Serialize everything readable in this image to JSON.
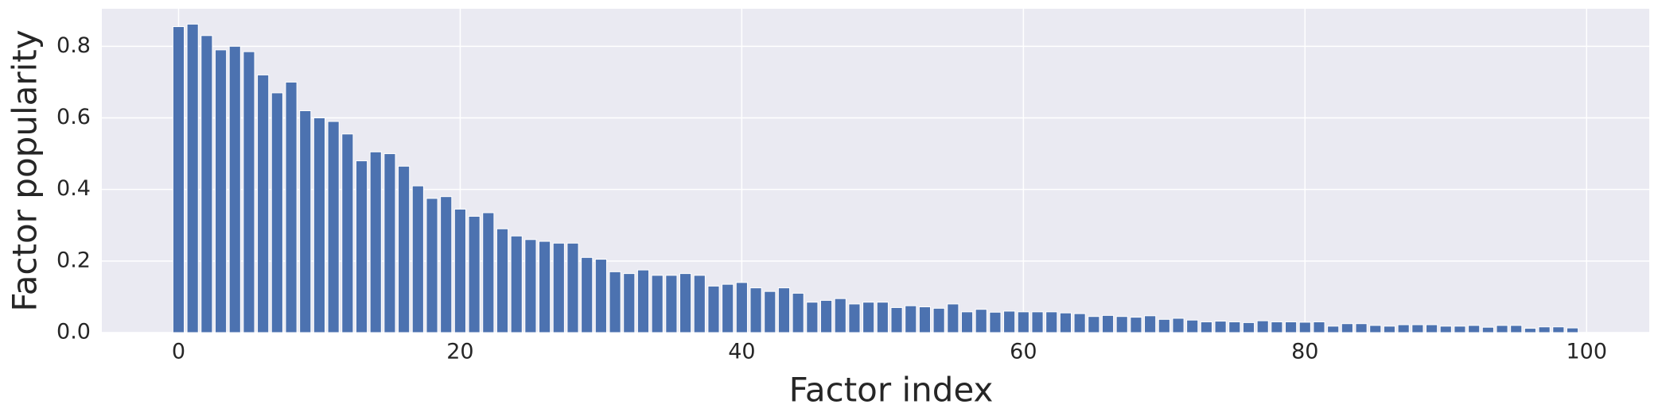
{
  "chart_data": {
    "type": "bar",
    "xlabel": "Factor index",
    "ylabel": "Factor popularity",
    "x": [
      0,
      1,
      2,
      3,
      4,
      5,
      6,
      7,
      8,
      9,
      10,
      11,
      12,
      13,
      14,
      15,
      16,
      17,
      18,
      19,
      20,
      21,
      22,
      23,
      24,
      25,
      26,
      27,
      28,
      29,
      30,
      31,
      32,
      33,
      34,
      35,
      36,
      37,
      38,
      39,
      40,
      41,
      42,
      43,
      44,
      45,
      46,
      47,
      48,
      49,
      50,
      51,
      52,
      53,
      54,
      55,
      56,
      57,
      58,
      59,
      60,
      61,
      62,
      63,
      64,
      65,
      66,
      67,
      68,
      69,
      70,
      71,
      72,
      73,
      74,
      75,
      76,
      77,
      78,
      79,
      80,
      81,
      82,
      83,
      84,
      85,
      86,
      87,
      88,
      89,
      90,
      91,
      92,
      93,
      94,
      95,
      96,
      97,
      98,
      99
    ],
    "values": [
      0.855,
      0.862,
      0.83,
      0.79,
      0.8,
      0.785,
      0.72,
      0.67,
      0.7,
      0.62,
      0.6,
      0.59,
      0.555,
      0.48,
      0.505,
      0.5,
      0.465,
      0.41,
      0.375,
      0.38,
      0.345,
      0.325,
      0.335,
      0.29,
      0.27,
      0.26,
      0.255,
      0.25,
      0.25,
      0.21,
      0.205,
      0.17,
      0.165,
      0.175,
      0.16,
      0.16,
      0.165,
      0.16,
      0.13,
      0.135,
      0.14,
      0.125,
      0.115,
      0.125,
      0.11,
      0.085,
      0.09,
      0.095,
      0.08,
      0.085,
      0.085,
      0.07,
      0.075,
      0.072,
      0.068,
      0.08,
      0.058,
      0.065,
      0.057,
      0.06,
      0.058,
      0.058,
      0.058,
      0.055,
      0.053,
      0.045,
      0.048,
      0.045,
      0.043,
      0.047,
      0.037,
      0.04,
      0.035,
      0.03,
      0.032,
      0.03,
      0.028,
      0.033,
      0.03,
      0.03,
      0.029,
      0.03,
      0.018,
      0.025,
      0.025,
      0.02,
      0.018,
      0.022,
      0.022,
      0.022,
      0.018,
      0.018,
      0.02,
      0.015,
      0.02,
      0.02,
      0.012,
      0.016,
      0.016,
      0.013
    ],
    "color": "#4c72b0",
    "xlim": [
      -5.45,
      104.45
    ],
    "ylim": [
      0,
      0.905
    ],
    "xticks": [
      0,
      20,
      40,
      60,
      80,
      100
    ],
    "yticks": [
      {
        "value": 0,
        "label": "0.0"
      },
      0.2,
      0.4,
      0.6,
      0.8
    ],
    "grid": true
  }
}
